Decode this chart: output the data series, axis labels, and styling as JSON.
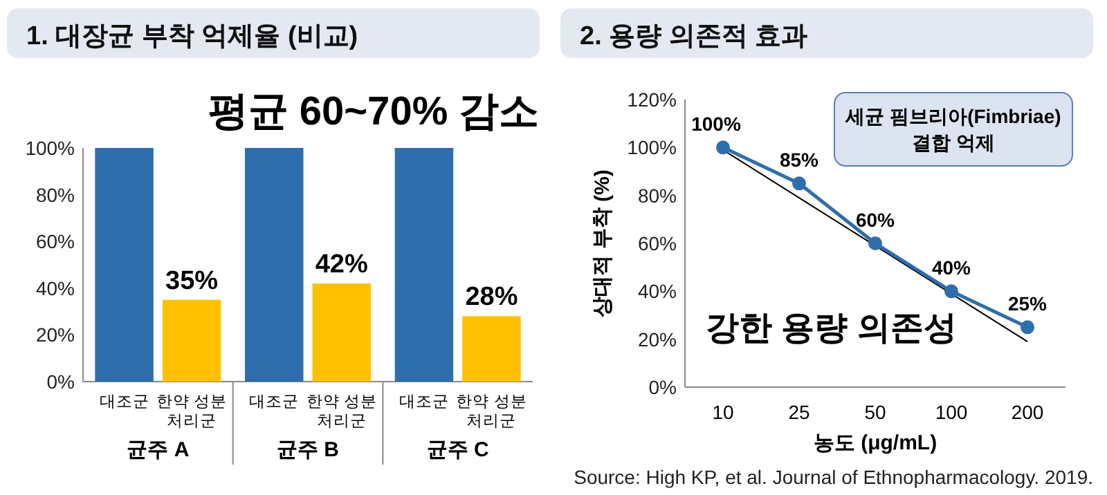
{
  "chart_data": [
    {
      "type": "bar",
      "title": "1. 대장균 부착 억제율 (비교)",
      "annotations": [
        "평균 60~70% 감소"
      ],
      "categories": [
        "균주 A",
        "균주 B",
        "균주 C"
      ],
      "series": [
        {
          "name": "대조군",
          "color": "#2f6eac",
          "values": [
            100,
            100,
            100
          ]
        },
        {
          "name": "한약 성분\n처리군",
          "color": "#ffc000",
          "values": [
            35,
            42,
            28
          ],
          "value_labels": [
            "35%",
            "42%",
            "28%"
          ]
        }
      ],
      "ylim": [
        0,
        100
      ],
      "yticks": [
        {
          "value": 0,
          "label": "0%"
        },
        {
          "value": 20,
          "label": "20%"
        },
        {
          "value": 40,
          "label": "40%"
        },
        {
          "value": 60,
          "label": "60%"
        },
        {
          "value": 80,
          "label": "80%"
        },
        {
          "value": 100,
          "label": "100%"
        }
      ]
    },
    {
      "type": "line",
      "title": "2. 용량 의존적 효과",
      "xlabel": "농도 (μg/mL)",
      "ylabel": "상대적 부착 (%)",
      "marker": "circle",
      "categories": [
        "10",
        "25",
        "50",
        "100",
        "200"
      ],
      "series": [
        {
          "color": "#2f6eac",
          "values": [
            100,
            85,
            60,
            40,
            25
          ],
          "value_labels": [
            "100%",
            "85%",
            "60%",
            "40%",
            "25%"
          ]
        },
        {
          "type": "line",
          "color": "#000000",
          "marker": "none",
          "values": [
            99,
            79,
            59,
            39,
            19
          ]
        }
      ],
      "annotations": [
        "세균 핌브리아(Fimbriae)\n결합 억제",
        "강한 용량 의존성",
        "Source: High KP, et al. Journal of Ethnopharmacology. 2019."
      ],
      "ylim": [
        0,
        120
      ],
      "yticks": [
        {
          "value": 0,
          "label": "0%"
        },
        {
          "value": 20,
          "label": "20%"
        },
        {
          "value": 40,
          "label": "40%"
        },
        {
          "value": 60,
          "label": "60%"
        },
        {
          "value": 80,
          "label": "80%"
        },
        {
          "value": 100,
          "label": "100%"
        },
        {
          "value": 120,
          "label": "120%"
        }
      ]
    }
  ]
}
